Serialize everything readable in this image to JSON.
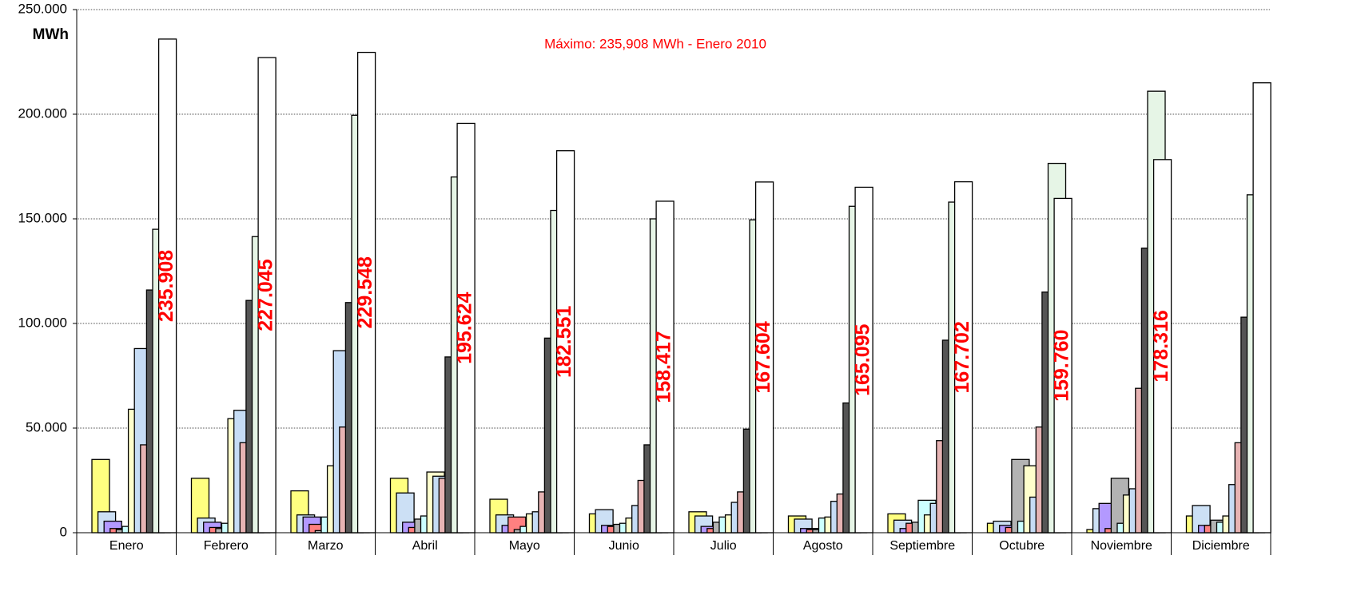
{
  "chart_data": {
    "type": "bar",
    "annotation": "Máximo: 235,908 MWh - Enero 2010",
    "y_label": "MWh",
    "categories": [
      "Enero",
      "Febrero",
      "Marzo",
      "Abril",
      "Mayo",
      "Junio",
      "Julio",
      "Agosto",
      "Septiembre",
      "Octubre",
      "Noviembre",
      "Diciembre"
    ],
    "ylim": [
      0,
      250000
    ],
    "yticks": [
      0,
      {
        "value": 50000,
        "label": "50.000"
      },
      {
        "value": 100000,
        "label": "100.000"
      },
      {
        "value": 150000,
        "label": "150.000"
      },
      {
        "value": 200000,
        "label": "200.000"
      },
      {
        "value": 250000,
        "label": "250.000"
      }
    ],
    "grid": true,
    "series": [
      {
        "color": "#ffff80",
        "values": [
          35000,
          26000,
          20000,
          26000,
          16000,
          9000,
          10000,
          8000,
          9000,
          4500,
          1500,
          8000
        ]
      },
      {
        "color": "#cce0f5",
        "values": [
          10000,
          7000,
          8500,
          19000,
          8500,
          11000,
          8000,
          6500,
          6000,
          5500,
          11500,
          13000
        ]
      },
      {
        "color": "#b399ff",
        "values": [
          5500,
          5000,
          7500,
          5000,
          3500,
          3500,
          3000,
          2000,
          2000,
          3500,
          14000,
          3500
        ]
      },
      {
        "color": "#ff8080",
        "values": [
          2000,
          2500,
          4000,
          2500,
          7500,
          3000,
          2000,
          1500,
          4500,
          2500,
          2000,
          3500
        ]
      },
      {
        "color": "#b3b3b3",
        "values": [
          1500,
          2000,
          1000,
          6500,
          1500,
          4000,
          5000,
          1500,
          5000,
          35000,
          26000,
          6000
        ]
      },
      {
        "color": "#ccffff",
        "values": [
          3000,
          4500,
          7500,
          8000,
          3000,
          4500,
          7500,
          7000,
          15500,
          5500,
          4500,
          5000
        ]
      },
      {
        "color": "#ffffcc",
        "values": [
          59000,
          54500,
          32000,
          29000,
          9000,
          7000,
          8500,
          7500,
          8500,
          32000,
          18000,
          8000
        ]
      },
      {
        "color": "#c6dcf5",
        "values": [
          88000,
          58500,
          87000,
          27000,
          10000,
          13000,
          14500,
          15000,
          14000,
          17000,
          21000,
          23000
        ]
      },
      {
        "color": "#e6b3b3",
        "values": [
          42000,
          43000,
          50500,
          26000,
          19500,
          25000,
          19500,
          18500,
          44000,
          50500,
          69000,
          43000
        ]
      },
      {
        "color": "#555555",
        "values": [
          116000,
          111000,
          110000,
          84000,
          93000,
          42000,
          49500,
          62000,
          92000,
          115000,
          136000,
          103000
        ]
      },
      {
        "color": "#e6f5e6",
        "values": [
          145000,
          141500,
          199500,
          170000,
          154000,
          150000,
          149500,
          156000,
          158000,
          176500,
          211000,
          161500
        ]
      },
      {
        "color": "#ffffff",
        "values": [
          235908,
          227045,
          229548,
          195624,
          182551,
          158417,
          167604,
          165095,
          167702,
          159760,
          178316,
          215000
        ],
        "value_labels": [
          "235.908",
          "227.045",
          "229.548",
          "195.624",
          "182.551",
          "158.417",
          "167.604",
          "165.095",
          "167.702",
          "159.760",
          "178.316",
          null
        ]
      }
    ]
  }
}
